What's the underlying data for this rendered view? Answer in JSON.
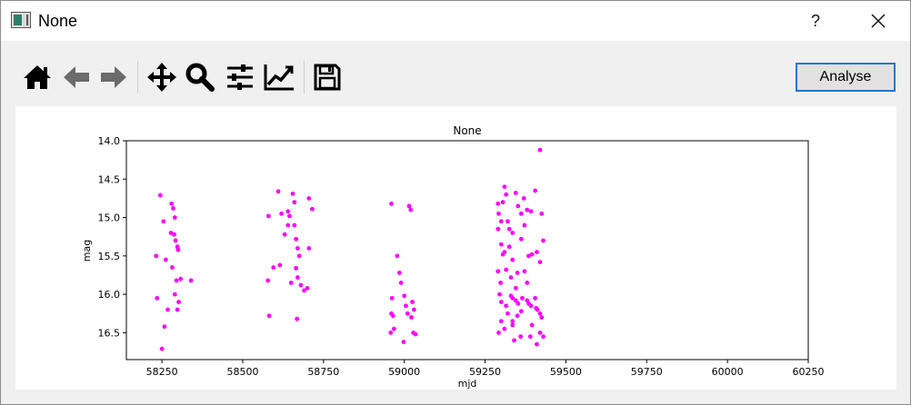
{
  "window": {
    "title": "None",
    "help_label": "?"
  },
  "toolbar": {
    "buttons": [
      {
        "name": "home-button",
        "icon": "home-icon"
      },
      {
        "name": "back-button",
        "icon": "arrow-left-icon"
      },
      {
        "name": "forward-button",
        "icon": "arrow-right-icon"
      },
      {
        "name": "pan-button",
        "icon": "move-icon"
      },
      {
        "name": "zoom-button",
        "icon": "magnifier-icon"
      },
      {
        "name": "subplots-button",
        "icon": "sliders-icon"
      },
      {
        "name": "edit-axes-button",
        "icon": "line-chart-icon"
      },
      {
        "name": "save-button",
        "icon": "floppy-disk-icon"
      }
    ],
    "analyse_label": "Analyse"
  },
  "chart_data": {
    "type": "scatter",
    "title": "None",
    "xlabel": "mjd",
    "ylabel": "mag",
    "xlim": [
      58140,
      60250
    ],
    "ylim": [
      16.85,
      14.0
    ],
    "y_inverted": true,
    "xticks": [
      58250,
      58500,
      58750,
      59000,
      59250,
      59500,
      59750,
      60000,
      60250
    ],
    "yticks": [
      14.0,
      14.5,
      15.0,
      15.5,
      16.0,
      16.5
    ],
    "marker_color": "#ff00ff",
    "grid": false,
    "points": [
      [
        58245,
        14.71
      ],
      [
        58255,
        15.05
      ],
      [
        58232,
        15.5
      ],
      [
        58262,
        15.55
      ],
      [
        58235,
        16.05
      ],
      [
        58268,
        16.2
      ],
      [
        58258,
        16.42
      ],
      [
        58250,
        16.71
      ],
      [
        58280,
        14.82
      ],
      [
        58285,
        14.88
      ],
      [
        58290,
        15.0
      ],
      [
        58278,
        15.2
      ],
      [
        58292,
        15.3
      ],
      [
        58288,
        15.22
      ],
      [
        58298,
        15.38
      ],
      [
        58300,
        15.42
      ],
      [
        58282,
        15.65
      ],
      [
        58295,
        15.82
      ],
      [
        58308,
        15.8
      ],
      [
        58302,
        16.1
      ],
      [
        58290,
        16.0
      ],
      [
        58298,
        16.2
      ],
      [
        58340,
        15.82
      ],
      [
        58580,
        14.98
      ],
      [
        58578,
        15.82
      ],
      [
        58582,
        16.28
      ],
      [
        58595,
        15.65
      ],
      [
        58610,
        14.66
      ],
      [
        58620,
        14.95
      ],
      [
        58630,
        15.22
      ],
      [
        58640,
        15.1
      ],
      [
        58645,
        14.98
      ],
      [
        58640,
        14.92
      ],
      [
        58615,
        15.62
      ],
      [
        58650,
        15.85
      ],
      [
        58655,
        14.69
      ],
      [
        58660,
        14.8
      ],
      [
        58660,
        15.1
      ],
      [
        58665,
        15.28
      ],
      [
        58670,
        15.4
      ],
      [
        58675,
        15.5
      ],
      [
        58665,
        15.66
      ],
      [
        58670,
        15.78
      ],
      [
        58668,
        16.32
      ],
      [
        58680,
        15.88
      ],
      [
        58690,
        15.95
      ],
      [
        58700,
        15.92
      ],
      [
        58715,
        14.89
      ],
      [
        58705,
        14.75
      ],
      [
        58705,
        15.4
      ],
      [
        58960,
        14.82
      ],
      [
        58978,
        15.5
      ],
      [
        58985,
        15.72
      ],
      [
        58962,
        16.05
      ],
      [
        58960,
        16.25
      ],
      [
        58965,
        16.28
      ],
      [
        58958,
        16.5
      ],
      [
        58968,
        16.45
      ],
      [
        58990,
        15.85
      ],
      [
        59000,
        16.02
      ],
      [
        59005,
        16.15
      ],
      [
        59010,
        16.25
      ],
      [
        59015,
        14.85
      ],
      [
        59020,
        14.9
      ],
      [
        59025,
        16.1
      ],
      [
        59030,
        16.2
      ],
      [
        59022,
        16.3
      ],
      [
        59035,
        16.52
      ],
      [
        58998,
        16.62
      ],
      [
        59028,
        16.5
      ],
      [
        59290,
        14.82
      ],
      [
        59292,
        14.95
      ],
      [
        59300,
        15.05
      ],
      [
        59305,
        14.8
      ],
      [
        59310,
        14.6
      ],
      [
        59315,
        14.7
      ],
      [
        59320,
        15.05
      ],
      [
        59325,
        15.15
      ],
      [
        59335,
        15.2
      ],
      [
        59345,
        14.68
      ],
      [
        59352,
        14.85
      ],
      [
        59362,
        14.95
      ],
      [
        59370,
        14.75
      ],
      [
        59380,
        14.9
      ],
      [
        59372,
        15.1
      ],
      [
        59392,
        14.92
      ],
      [
        59405,
        14.65
      ],
      [
        59425,
        14.95
      ],
      [
        59420,
        14.12
      ],
      [
        59290,
        15.15
      ],
      [
        59300,
        15.35
      ],
      [
        59310,
        15.45
      ],
      [
        59305,
        15.48
      ],
      [
        59325,
        15.38
      ],
      [
        59335,
        15.55
      ],
      [
        59350,
        15.72
      ],
      [
        59362,
        15.28
      ],
      [
        59385,
        15.5
      ],
      [
        59395,
        15.48
      ],
      [
        59410,
        15.45
      ],
      [
        59420,
        15.58
      ],
      [
        59430,
        15.3
      ],
      [
        59290,
        15.7
      ],
      [
        59298,
        15.85
      ],
      [
        59315,
        15.68
      ],
      [
        59330,
        15.78
      ],
      [
        59345,
        15.92
      ],
      [
        59372,
        15.7
      ],
      [
        59380,
        15.85
      ],
      [
        59295,
        16.0
      ],
      [
        59300,
        16.1
      ],
      [
        59315,
        16.15
      ],
      [
        59320,
        16.25
      ],
      [
        59330,
        16.02
      ],
      [
        59335,
        16.05
      ],
      [
        59345,
        16.08
      ],
      [
        59352,
        16.12
      ],
      [
        59362,
        16.22
      ],
      [
        59365,
        16.05
      ],
      [
        59380,
        16.08
      ],
      [
        59385,
        16.12
      ],
      [
        59392,
        16.15
      ],
      [
        59405,
        16.05
      ],
      [
        59408,
        16.18
      ],
      [
        59412,
        16.2
      ],
      [
        59420,
        16.25
      ],
      [
        59425,
        16.3
      ],
      [
        59300,
        16.35
      ],
      [
        59310,
        16.45
      ],
      [
        59335,
        16.4
      ],
      [
        59360,
        16.55
      ],
      [
        59395,
        16.4
      ],
      [
        59420,
        16.5
      ],
      [
        59430,
        16.55
      ],
      [
        59292,
        16.5
      ],
      [
        59340,
        16.6
      ],
      [
        59390,
        16.55
      ],
      [
        59410,
        16.65
      ],
      [
        59335,
        16.35
      ],
      [
        59350,
        16.28
      ]
    ]
  }
}
